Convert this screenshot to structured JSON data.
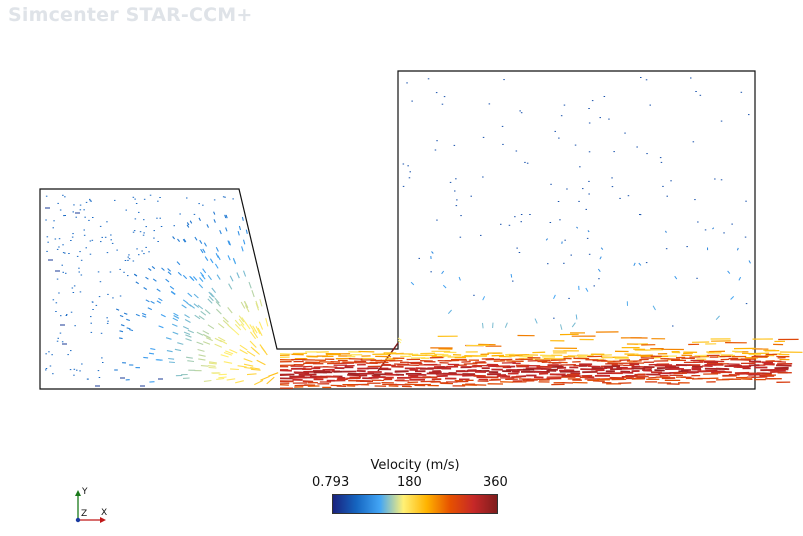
{
  "app": {
    "brand": "Simcenter STAR-CCM+"
  },
  "legend": {
    "title": "Velocity (m/s)",
    "min_label": "0.793",
    "mid_label": "180",
    "max_label": "360",
    "colormap": [
      "#1a237e",
      "#1565c0",
      "#42a5f5",
      "#fff176",
      "#ffb300",
      "#e65100",
      "#c62828",
      "#7f1d1d"
    ]
  },
  "axes": {
    "y_label": "Y",
    "z_label": "Z",
    "x_label": "X"
  }
}
